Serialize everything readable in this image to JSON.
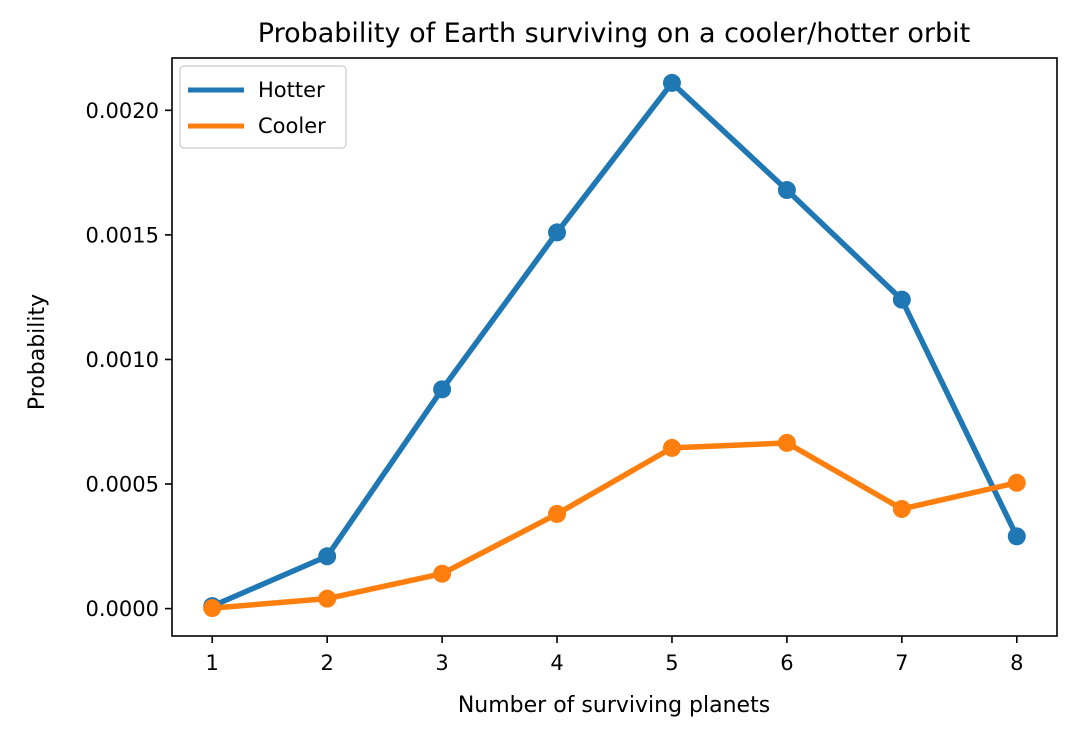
{
  "chart_data": {
    "type": "line",
    "title": "Probability of Earth surviving on a cooler/hotter orbit",
    "xlabel": "Number of surviving planets",
    "ylabel": "Probability",
    "x": [
      1,
      2,
      3,
      4,
      5,
      6,
      7,
      8
    ],
    "xticks": [
      "1",
      "2",
      "3",
      "4",
      "5",
      "6",
      "7",
      "8"
    ],
    "yticks": [
      "0.0000",
      "0.0005",
      "0.0010",
      "0.0015",
      "0.0020"
    ],
    "ylim": [
      -0.00011,
      0.00221
    ],
    "xlim": [
      0.65,
      8.35
    ],
    "grid": false,
    "legend_position": "upper left",
    "series": [
      {
        "name": "Hotter",
        "color": "#1f77b4",
        "values": [
          1e-05,
          0.00021,
          0.00088,
          0.00151,
          0.00211,
          0.00168,
          0.00124,
          0.00029
        ]
      },
      {
        "name": "Cooler",
        "color": "#ff7f0e",
        "values": [
          2e-06,
          4e-05,
          0.00014,
          0.00038,
          0.000645,
          0.000665,
          0.0004,
          0.000505
        ]
      }
    ]
  }
}
